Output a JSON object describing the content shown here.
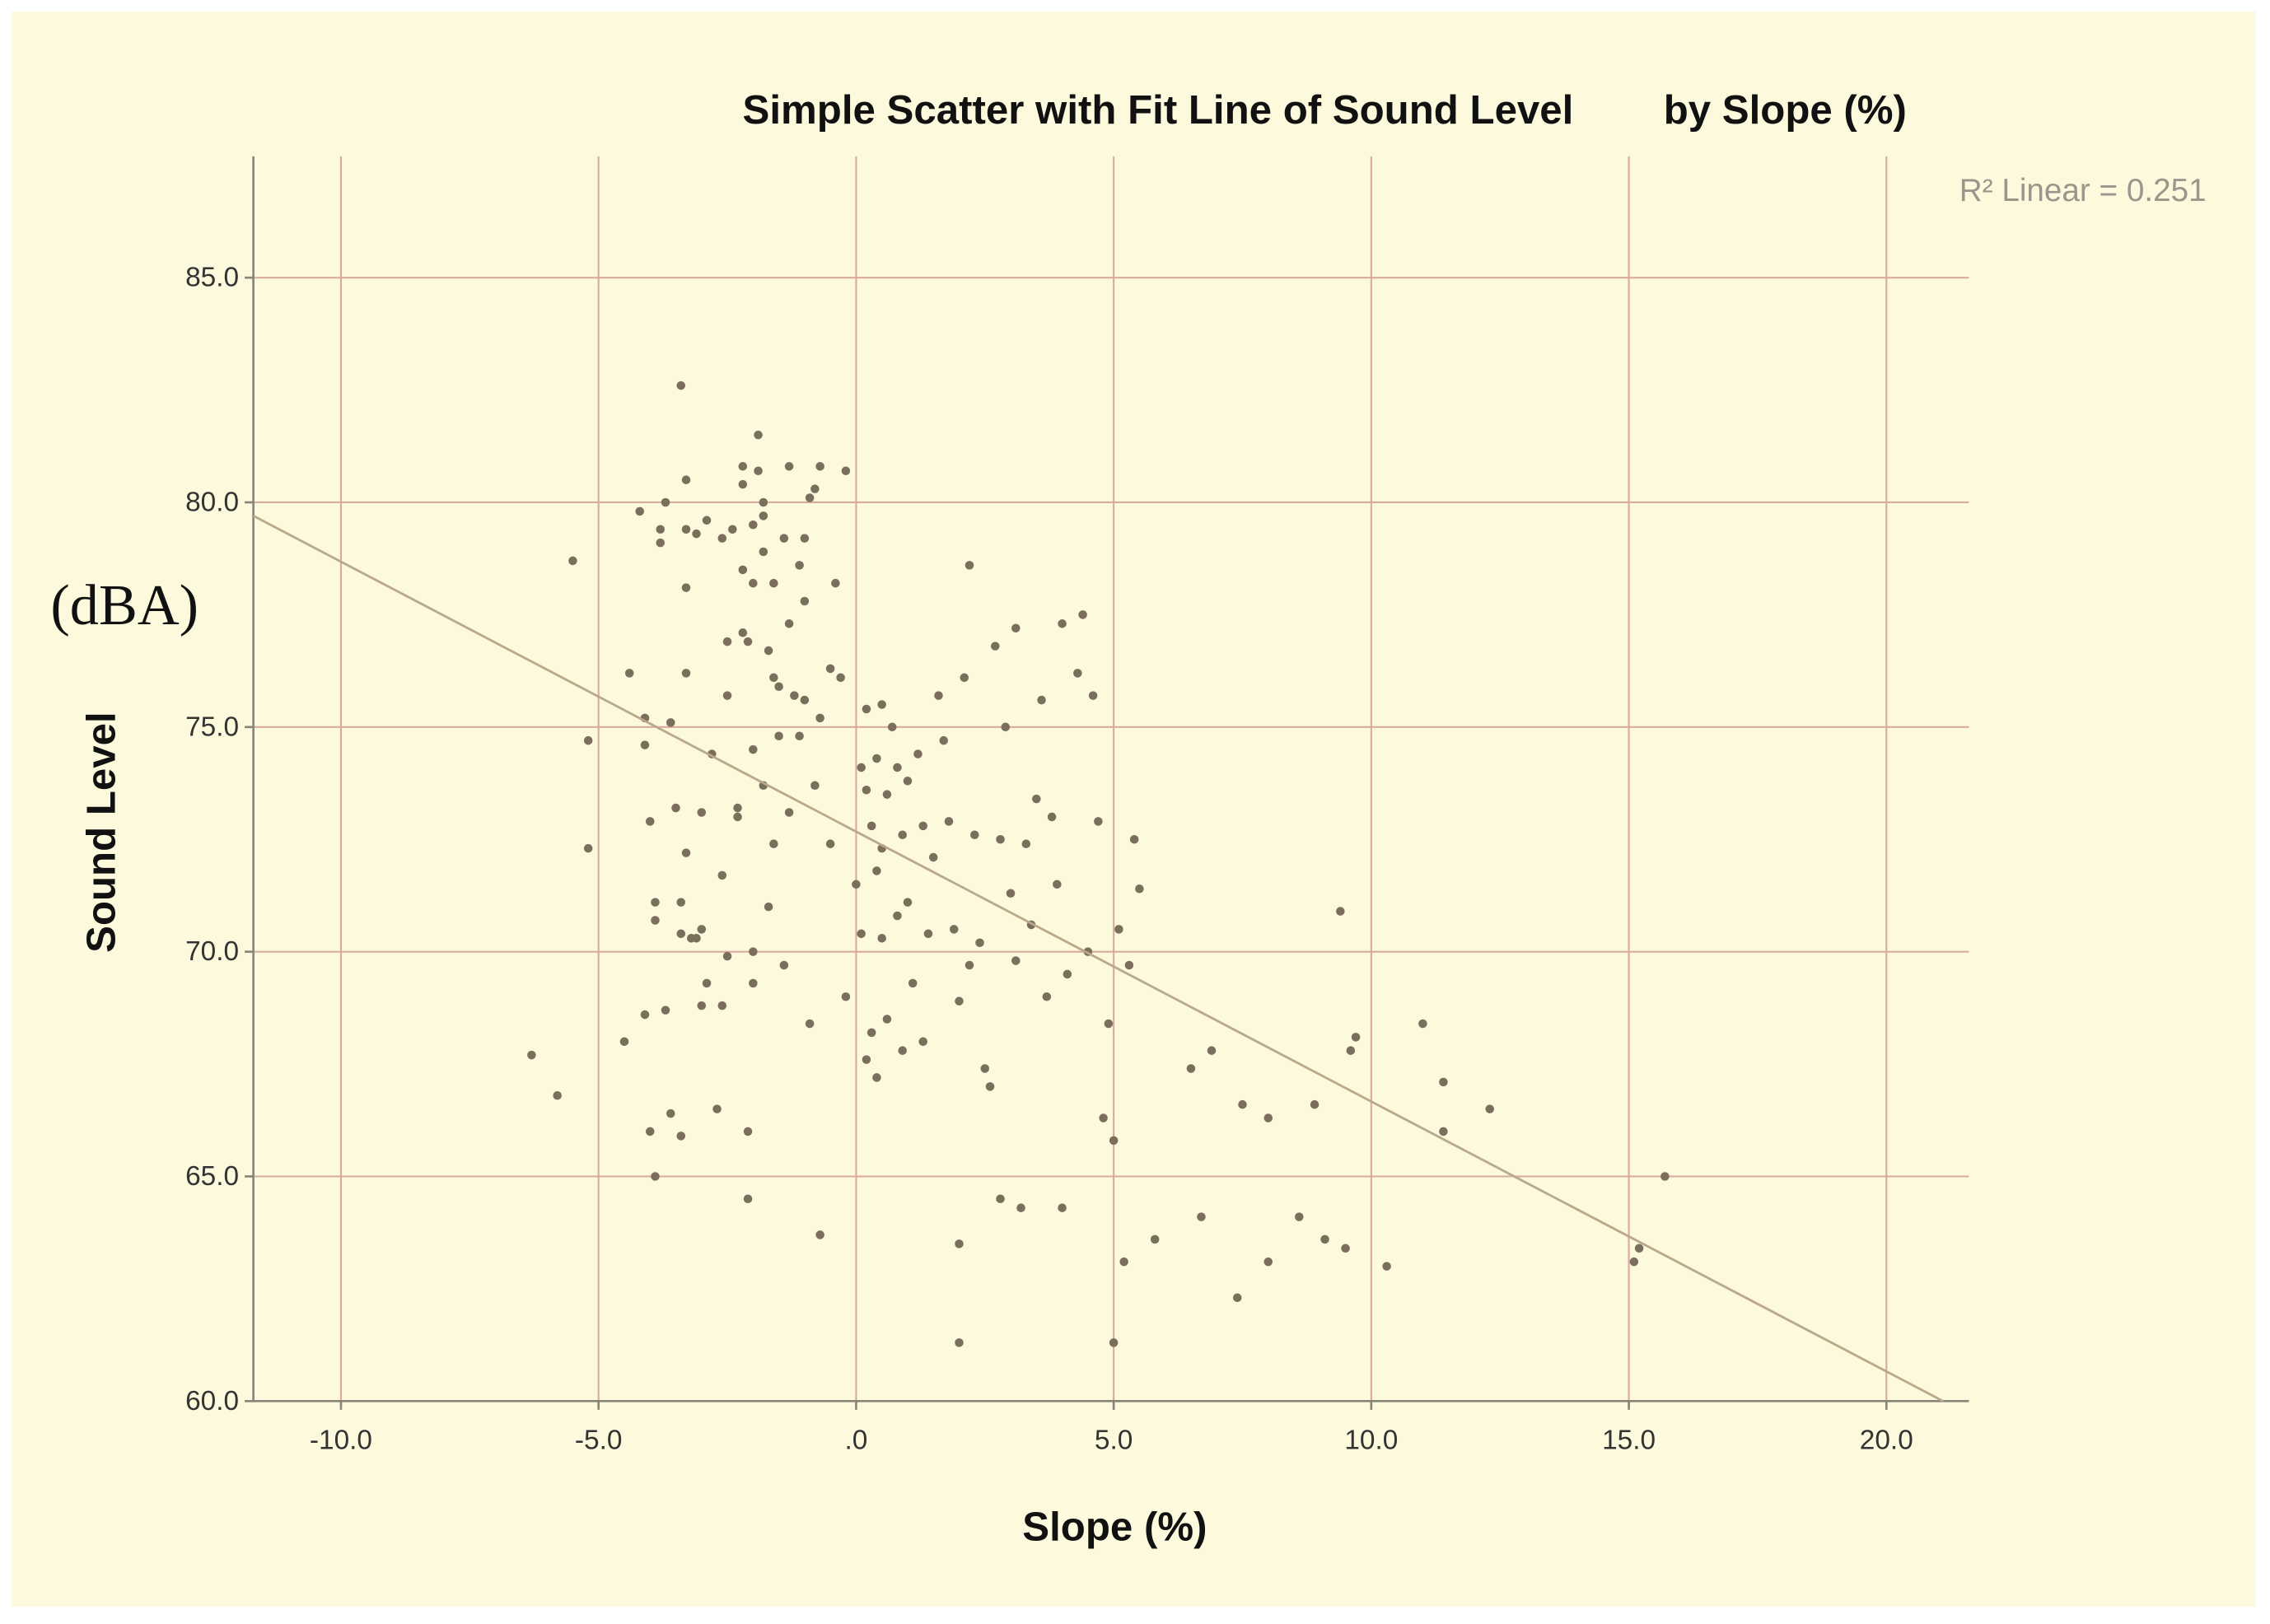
{
  "chart_data": {
    "type": "scatter",
    "title": "Simple Scatter with Fit Line of Sound Level        by Slope (%)",
    "x_label": "Slope (%)",
    "y_label": "Sound Level",
    "y_unit_note": "(dBA)",
    "annotation": "R² Linear = 0.251",
    "xlim": [
      -11.7,
      21.6
    ],
    "ylim": [
      60,
      87.7
    ],
    "xticks": [
      {
        "value": -10,
        "label": "-10.0"
      },
      {
        "value": -5,
        "label": "-5.0"
      },
      {
        "value": 0,
        "label": ".0"
      },
      {
        "value": 5,
        "label": "5.0"
      },
      {
        "value": 10,
        "label": "10.0"
      },
      {
        "value": 15,
        "label": "15.0"
      },
      {
        "value": 20,
        "label": "20.0"
      }
    ],
    "yticks": [
      {
        "value": 60,
        "label": "60.0"
      },
      {
        "value": 65,
        "label": "65.0"
      },
      {
        "value": 70,
        "label": "70.0"
      },
      {
        "value": 75,
        "label": "75.0"
      },
      {
        "value": 80,
        "label": "80.0"
      },
      {
        "value": 85,
        "label": "85.0"
      }
    ],
    "grid": true,
    "color": "#7a6e5c",
    "x": [
      -6.3,
      -5.8,
      -5.5,
      -5.2,
      -5.2,
      -4.5,
      -4.4,
      -4.2,
      -4.1,
      -4.1,
      -4.1,
      -4.0,
      -4.0,
      -3.9,
      -3.9,
      -3.9,
      -3.8,
      -3.8,
      -3.7,
      -3.7,
      -3.6,
      -3.6,
      -3.5,
      -3.4,
      -3.4,
      -3.4,
      -3.4,
      -3.3,
      -3.3,
      -3.3,
      -3.3,
      -3.3,
      -3.2,
      -3.1,
      -3.1,
      -3.0,
      -3.0,
      -3.0,
      -2.9,
      -2.9,
      -2.8,
      -2.7,
      -2.6,
      -2.6,
      -2.6,
      -2.5,
      -2.5,
      -2.5,
      -2.4,
      -2.3,
      -2.3,
      -2.2,
      -2.2,
      -2.2,
      -2.2,
      -2.1,
      -2.1,
      -2.1,
      -2.0,
      -2.0,
      -2.0,
      -2.0,
      -2.0,
      -1.9,
      -1.9,
      -1.8,
      -1.8,
      -1.8,
      -1.8,
      -1.7,
      -1.7,
      -1.6,
      -1.6,
      -1.6,
      -1.5,
      -1.5,
      -1.4,
      -1.4,
      -1.3,
      -1.3,
      -1.3,
      -1.2,
      -1.1,
      -1.1,
      -1.0,
      -1.0,
      -1.0,
      -0.9,
      -0.9,
      -0.8,
      -0.8,
      -0.7,
      -0.7,
      -0.7,
      -0.5,
      -0.5,
      -0.4,
      -0.3,
      -0.2,
      -0.2,
      0,
      0.1,
      0.1,
      0.2,
      0.2,
      0.2,
      0.3,
      0.3,
      0.4,
      0.4,
      0.4,
      0.5,
      0.5,
      0.5,
      0.6,
      0.6,
      0.7,
      0.8,
      0.8,
      0.9,
      0.9,
      1.0,
      1.0,
      1.1,
      1.2,
      1.3,
      1.3,
      1.4,
      1.5,
      1.6,
      1.7,
      1.8,
      1.9,
      2.0,
      2.0,
      2.0,
      2.1,
      2.2,
      2.2,
      2.3,
      2.4,
      2.5,
      2.6,
      2.7,
      2.8,
      2.8,
      2.9,
      3.0,
      3.1,
      3.1,
      3.2,
      3.3,
      3.4,
      3.5,
      3.6,
      3.7,
      3.8,
      3.9,
      4.0,
      4.0,
      4.1,
      4.3,
      4.4,
      4.5,
      4.6,
      4.7,
      4.8,
      4.9,
      5.0,
      5.0,
      5.1,
      5.2,
      5.3,
      5.4,
      5.5,
      5.8,
      6.5,
      6.7,
      6.9,
      7.4,
      7.5,
      8.0,
      8.0,
      8.6,
      8.9,
      9.1,
      9.4,
      9.5,
      9.6,
      9.7,
      10.3,
      11.0,
      11.4,
      11.4,
      12.3,
      15.1,
      15.2,
      15.7
    ],
    "values": [
      67.7,
      66.8,
      78.7,
      74.7,
      72.3,
      68.0,
      76.2,
      79.8,
      75.2,
      74.6,
      68.6,
      72.9,
      66.0,
      65.0,
      71.1,
      70.7,
      79.4,
      79.1,
      80.0,
      68.7,
      66.4,
      75.1,
      73.2,
      82.6,
      71.1,
      70.4,
      65.9,
      80.5,
      79.4,
      78.1,
      76.2,
      72.2,
      70.3,
      79.3,
      70.3,
      70.5,
      68.8,
      73.1,
      69.3,
      79.6,
      74.4,
      66.5,
      79.2,
      71.7,
      68.8,
      76.9,
      75.7,
      69.9,
      79.4,
      73.2,
      73.0,
      80.8,
      80.4,
      78.5,
      77.1,
      76.9,
      66.0,
      64.5,
      79.5,
      78.2,
      74.5,
      70.0,
      69.3,
      81.5,
      80.7,
      80.0,
      79.7,
      78.9,
      73.7,
      76.7,
      71.0,
      78.2,
      76.1,
      72.4,
      75.9,
      74.8,
      79.2,
      69.7,
      80.8,
      77.3,
      73.1,
      75.7,
      78.6,
      74.8,
      79.2,
      77.8,
      75.6,
      80.1,
      68.4,
      80.3,
      73.7,
      80.8,
      75.2,
      63.7,
      76.3,
      72.4,
      78.2,
      76.1,
      80.7,
      69.0,
      71.5,
      74.1,
      70.4,
      75.4,
      73.6,
      67.6,
      72.8,
      68.2,
      74.3,
      71.8,
      67.2,
      75.5,
      72.3,
      70.3,
      73.5,
      68.5,
      75.0,
      74.1,
      70.8,
      72.6,
      67.8,
      73.8,
      71.1,
      69.3,
      74.4,
      72.8,
      68.0,
      70.4,
      72.1,
      75.7,
      74.7,
      72.9,
      70.5,
      68.9,
      63.5,
      61.3,
      76.1,
      78.6,
      69.7,
      72.6,
      70.2,
      67.4,
      67.0,
      76.8,
      72.5,
      64.5,
      75.0,
      71.3,
      77.2,
      69.8,
      64.3,
      72.4,
      70.6,
      73.4,
      75.6,
      69.0,
      73.0,
      71.5,
      77.3,
      64.3,
      69.5,
      76.2,
      77.5,
      70.0,
      75.7,
      72.9,
      66.3,
      68.4,
      65.8,
      61.3,
      70.5,
      63.1,
      69.7,
      72.5,
      71.4,
      63.6,
      67.4,
      64.1,
      67.8,
      62.3,
      66.6,
      66.3,
      63.1,
      64.1,
      66.6,
      63.6,
      70.9,
      63.4,
      67.8,
      68.1,
      63.0,
      68.4,
      67.1,
      66.0,
      66.5,
      63.1,
      63.4,
      65.0
    ],
    "fit_line": {
      "x": [
        -11.7,
        21.1
      ],
      "values": [
        79.7,
        60
      ],
      "color": "#b9a98a"
    }
  }
}
